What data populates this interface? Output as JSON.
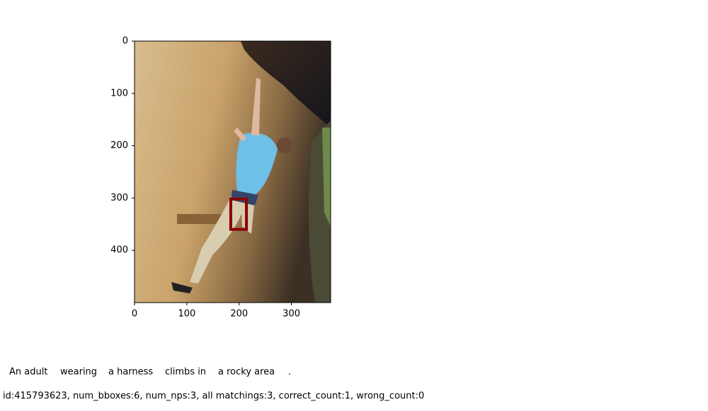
{
  "chart_data": {
    "type": "image",
    "xlim": [
      0,
      375
    ],
    "ylim": [
      500,
      0
    ],
    "xticks": [
      0,
      100,
      200,
      300
    ],
    "yticks": [
      0,
      100,
      200,
      300,
      400
    ],
    "boxes": [
      {
        "x": [
          184,
          214
        ],
        "y": [
          302,
          360
        ],
        "color": "#8b0000"
      }
    ]
  },
  "caption": {
    "segments": [
      {
        "text": "An adult",
        "color": "#00008b"
      },
      {
        "text": "wearing",
        "color": "#00008b"
      },
      {
        "text": "a harness",
        "color": "#8b0000"
      },
      {
        "text": "climbs in",
        "color": "#00008b"
      },
      {
        "text": "a rocky area",
        "color": "#00008b"
      },
      {
        "text": ".",
        "color": "#00008b"
      }
    ]
  },
  "footer": {
    "text": "id:415793623, num_bboxes:6, num_nps:3, all matchings:3, correct_count:1, wrong_count:0",
    "color": "#00008b"
  }
}
